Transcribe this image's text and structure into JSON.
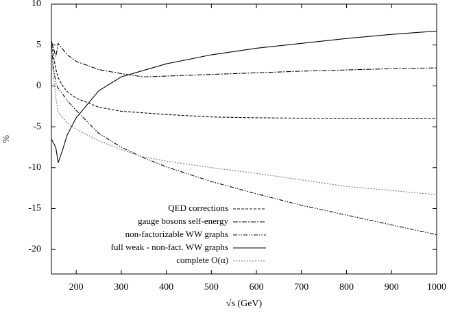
{
  "chart_data": {
    "type": "line",
    "x_label": "√s (GeV)",
    "y_label": "%",
    "x": [
      145,
      150,
      155,
      160,
      170,
      180,
      200,
      250,
      300,
      350,
      400,
      500,
      600,
      700,
      800,
      900,
      1000
    ],
    "xlim": [
      145,
      1000
    ],
    "xticks": [
      200,
      300,
      400,
      500,
      600,
      700,
      800,
      900,
      1000
    ],
    "ylim": [
      -23,
      10
    ],
    "yticks": [
      10,
      5,
      0,
      -5,
      -10,
      -15,
      -20
    ],
    "series": [
      {
        "name": "QED corrections",
        "color": "#000000",
        "dash": "4,2",
        "values": [
          5.5,
          3.5,
          2,
          1,
          0,
          -0.7,
          -1.5,
          -2.6,
          -3.1,
          -3.3,
          -3.5,
          -3.8,
          -3.9,
          -3.95,
          -4,
          -4,
          -4
        ]
      },
      {
        "name": "gauge bosons self-energy",
        "color": "#000000",
        "dash": "7,2,2,2",
        "values": [
          5.5,
          4.5,
          3.6,
          5.2,
          4.5,
          3.8,
          3,
          2,
          1.5,
          1.1,
          1.2,
          1.4,
          1.6,
          1.8,
          1.95,
          2.1,
          2.2
        ]
      },
      {
        "name": "non-factorizable WW graphs",
        "color": "#000000",
        "dash": "6,2,1.5,2,1.5,2",
        "values": [
          5,
          2,
          0.3,
          -0.3,
          -1,
          -1.8,
          -3,
          -5.8,
          -7.5,
          -8.8,
          -9.9,
          -11.7,
          -13.2,
          -14.6,
          -15.8,
          -17,
          -18.2
        ]
      },
      {
        "name": "full weak - non-fact. WW graphs",
        "color": "#000000",
        "dash": "none",
        "values": [
          -6.5,
          -7,
          -7.6,
          -9.4,
          -7.8,
          -6,
          -3.9,
          -0.6,
          1.1,
          1.9,
          2.7,
          3.8,
          4.6,
          5.2,
          5.8,
          6.3,
          6.7
        ]
      },
      {
        "name": "complete O(α)",
        "color": "#777777",
        "dash": "2,2",
        "values": [
          4,
          1,
          -1.5,
          -3.2,
          -3.9,
          -4.5,
          -5.3,
          -6.7,
          -7.8,
          -8.7,
          -9.2,
          -10,
          -10.7,
          -11.5,
          -12.3,
          -12.8,
          -13.3
        ]
      }
    ]
  }
}
